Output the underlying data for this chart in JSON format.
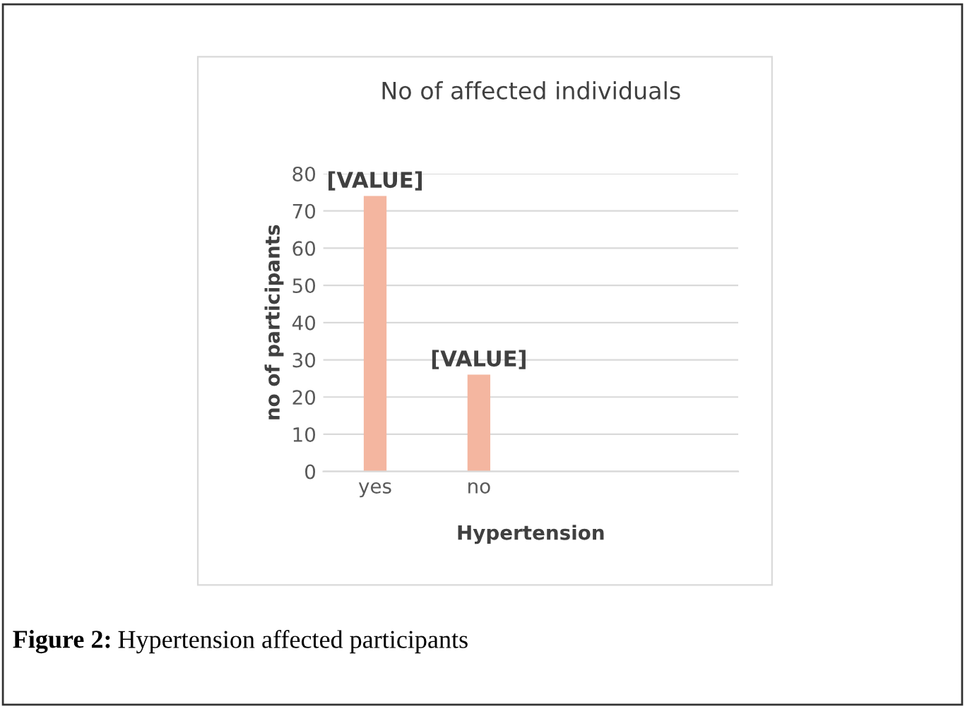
{
  "chart_data": {
    "type": "bar",
    "title": "No of affected individuals",
    "xlabel": "Hypertension",
    "ylabel": "no of participants",
    "categories": [
      "yes",
      "no",
      null,
      null
    ],
    "values": [
      74,
      26,
      null,
      null
    ],
    "value_labels": [
      "[VALUE]",
      "[VALUE]",
      null,
      null
    ],
    "color": "#f4b6a0",
    "ylim": [
      0,
      80
    ],
    "yticks": [
      0,
      10,
      20,
      30,
      40,
      50,
      60,
      70,
      80
    ],
    "grid": "y",
    "annotations": [
      "Figure 2: Hypertension affected participants"
    ]
  }
}
